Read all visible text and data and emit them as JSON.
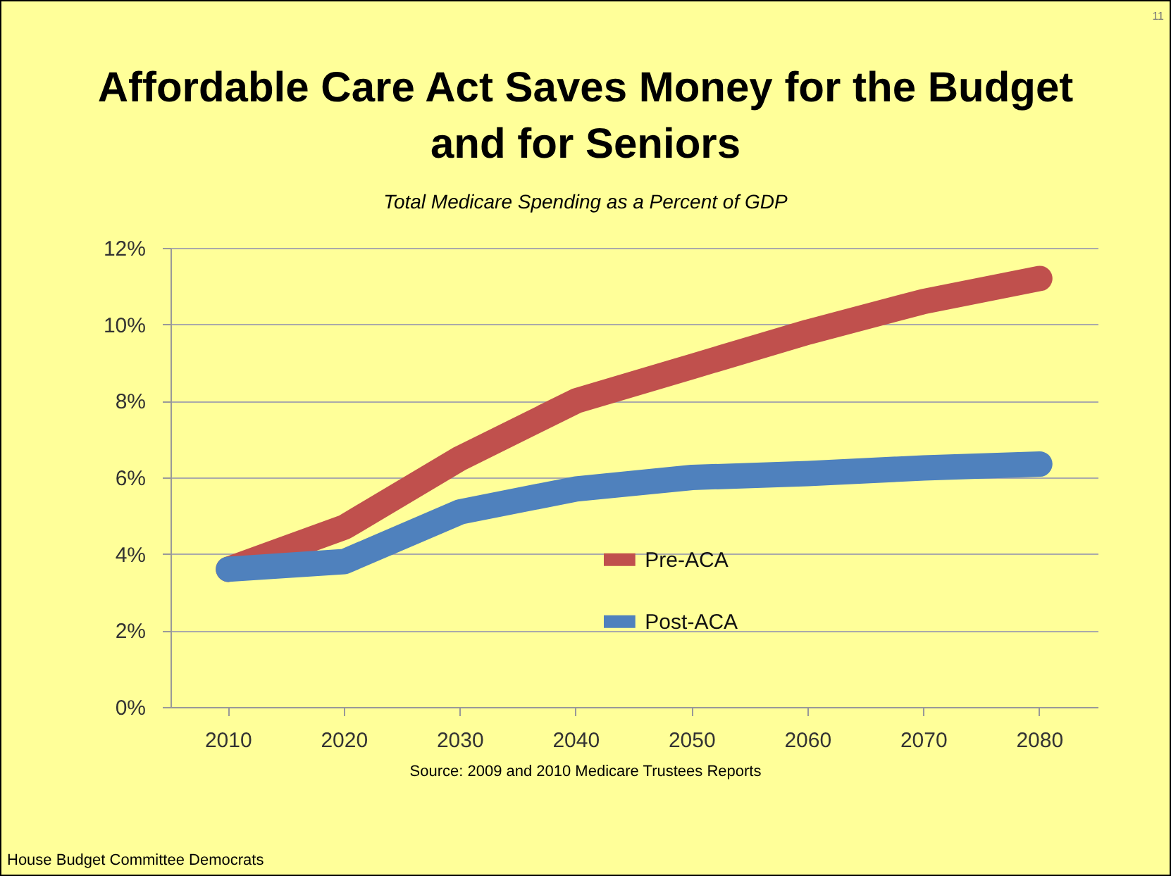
{
  "chart_data": {
    "type": "line",
    "title": "Affordable Care Act Saves Money for the Budget and for Seniors",
    "subtitle": "Total Medicare Spending as a Percent of GDP",
    "categories": [
      "2010",
      "2020",
      "2030",
      "2040",
      "2050",
      "2060",
      "2070",
      "2080"
    ],
    "series": [
      {
        "name": "Pre-ACA",
        "color": "#c0504d",
        "values": [
          3.6,
          4.7,
          6.5,
          8.0,
          8.9,
          9.8,
          10.6,
          11.2
        ]
      },
      {
        "name": "Post-ACA",
        "color": "#4f81bd",
        "values": [
          3.6,
          3.8,
          5.1,
          5.7,
          6.0,
          6.1,
          6.25,
          6.35
        ]
      }
    ],
    "ylim": [
      0,
      12
    ],
    "yticks": [
      {
        "value": 0,
        "label": "0%"
      },
      {
        "value": 2,
        "label": "2%"
      },
      {
        "value": 4,
        "label": "4%"
      },
      {
        "value": 6,
        "label": "6%"
      },
      {
        "value": 8,
        "label": "8%"
      },
      {
        "value": 10,
        "label": "10%"
      },
      {
        "value": 12,
        "label": "12%"
      }
    ],
    "grid": "y",
    "legend": "bottom",
    "marker": "none",
    "line_style": "solid",
    "annotations": [
      "Source: 2009 and 2010 Medicare Trustees Reports",
      "House Budget Committee Democrats",
      "11"
    ]
  }
}
